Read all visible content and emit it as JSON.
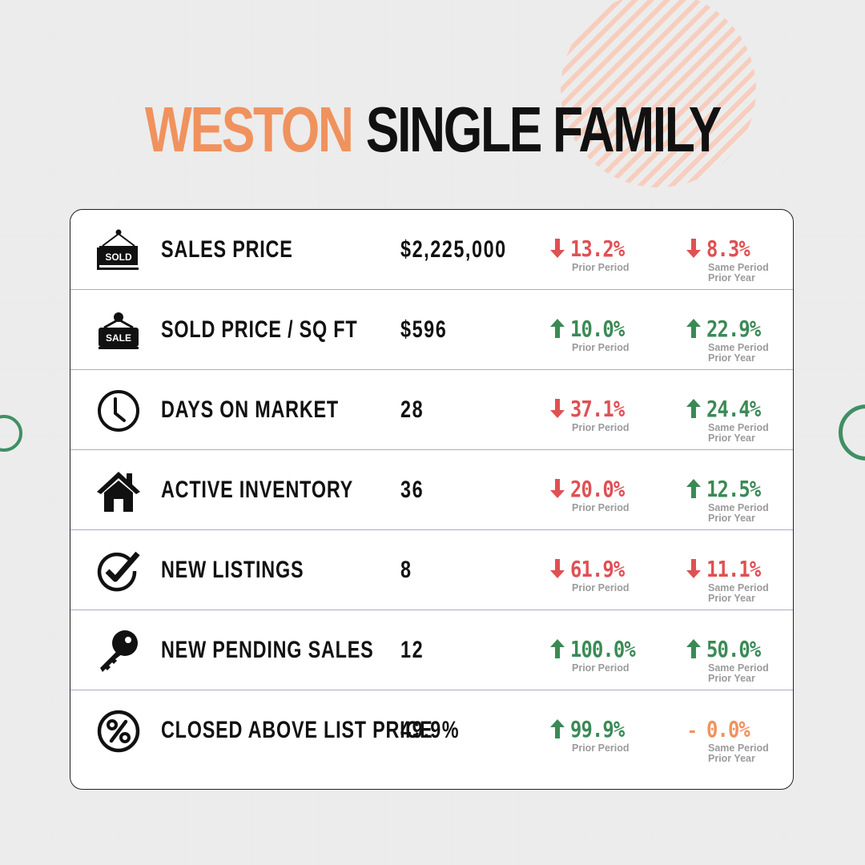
{
  "title": {
    "accent": "WESTON",
    "main": "SINGLE FAMILY"
  },
  "colors": {
    "accent": "#f0925e",
    "down": "#e05053",
    "up": "#3a8a55",
    "neutral": "#f0925e",
    "subtext": "#9b9b9b",
    "ring": "#3f9063"
  },
  "sub_labels": {
    "prior_period": "Prior Period",
    "same_period_line1": "Same Period",
    "same_period_line2": "Prior Year"
  },
  "rows": [
    {
      "icon": "sold-sign-icon",
      "icon_text": "SOLD",
      "label": "SALES PRICE",
      "value": "$2,225,000",
      "prior": {
        "dir": "down",
        "pct": "13.2%"
      },
      "year": {
        "dir": "down",
        "pct": "8.3%"
      }
    },
    {
      "icon": "sale-sign-icon",
      "icon_text": "SALE",
      "label": "SOLD PRICE / SQ FT",
      "value": "$596",
      "prior": {
        "dir": "up",
        "pct": "10.0%"
      },
      "year": {
        "dir": "up",
        "pct": "22.9%"
      }
    },
    {
      "icon": "clock-icon",
      "label": "DAYS ON MARKET",
      "value": "28",
      "prior": {
        "dir": "down",
        "pct": "37.1%"
      },
      "year": {
        "dir": "up",
        "pct": "24.4%"
      }
    },
    {
      "icon": "house-icon",
      "label": "ACTIVE INVENTORY",
      "value": "36",
      "prior": {
        "dir": "down",
        "pct": "20.0%"
      },
      "year": {
        "dir": "up",
        "pct": "12.5%"
      }
    },
    {
      "icon": "checkmark-icon",
      "label": "NEW LISTINGS",
      "value": "8",
      "prior": {
        "dir": "down",
        "pct": "61.9%"
      },
      "year": {
        "dir": "down",
        "pct": "11.1%"
      }
    },
    {
      "icon": "key-icon",
      "label": "NEW PENDING SALES",
      "value": "12",
      "prior": {
        "dir": "up",
        "pct": "100.0%"
      },
      "year": {
        "dir": "up",
        "pct": "50.0%"
      }
    },
    {
      "icon": "percent-icon",
      "label": "CLOSED ABOVE LIST PRICE",
      "value": "49.9%",
      "prior": {
        "dir": "up",
        "pct": "99.9%"
      },
      "year": {
        "dir": "flat",
        "pct": "0.0%"
      }
    }
  ]
}
